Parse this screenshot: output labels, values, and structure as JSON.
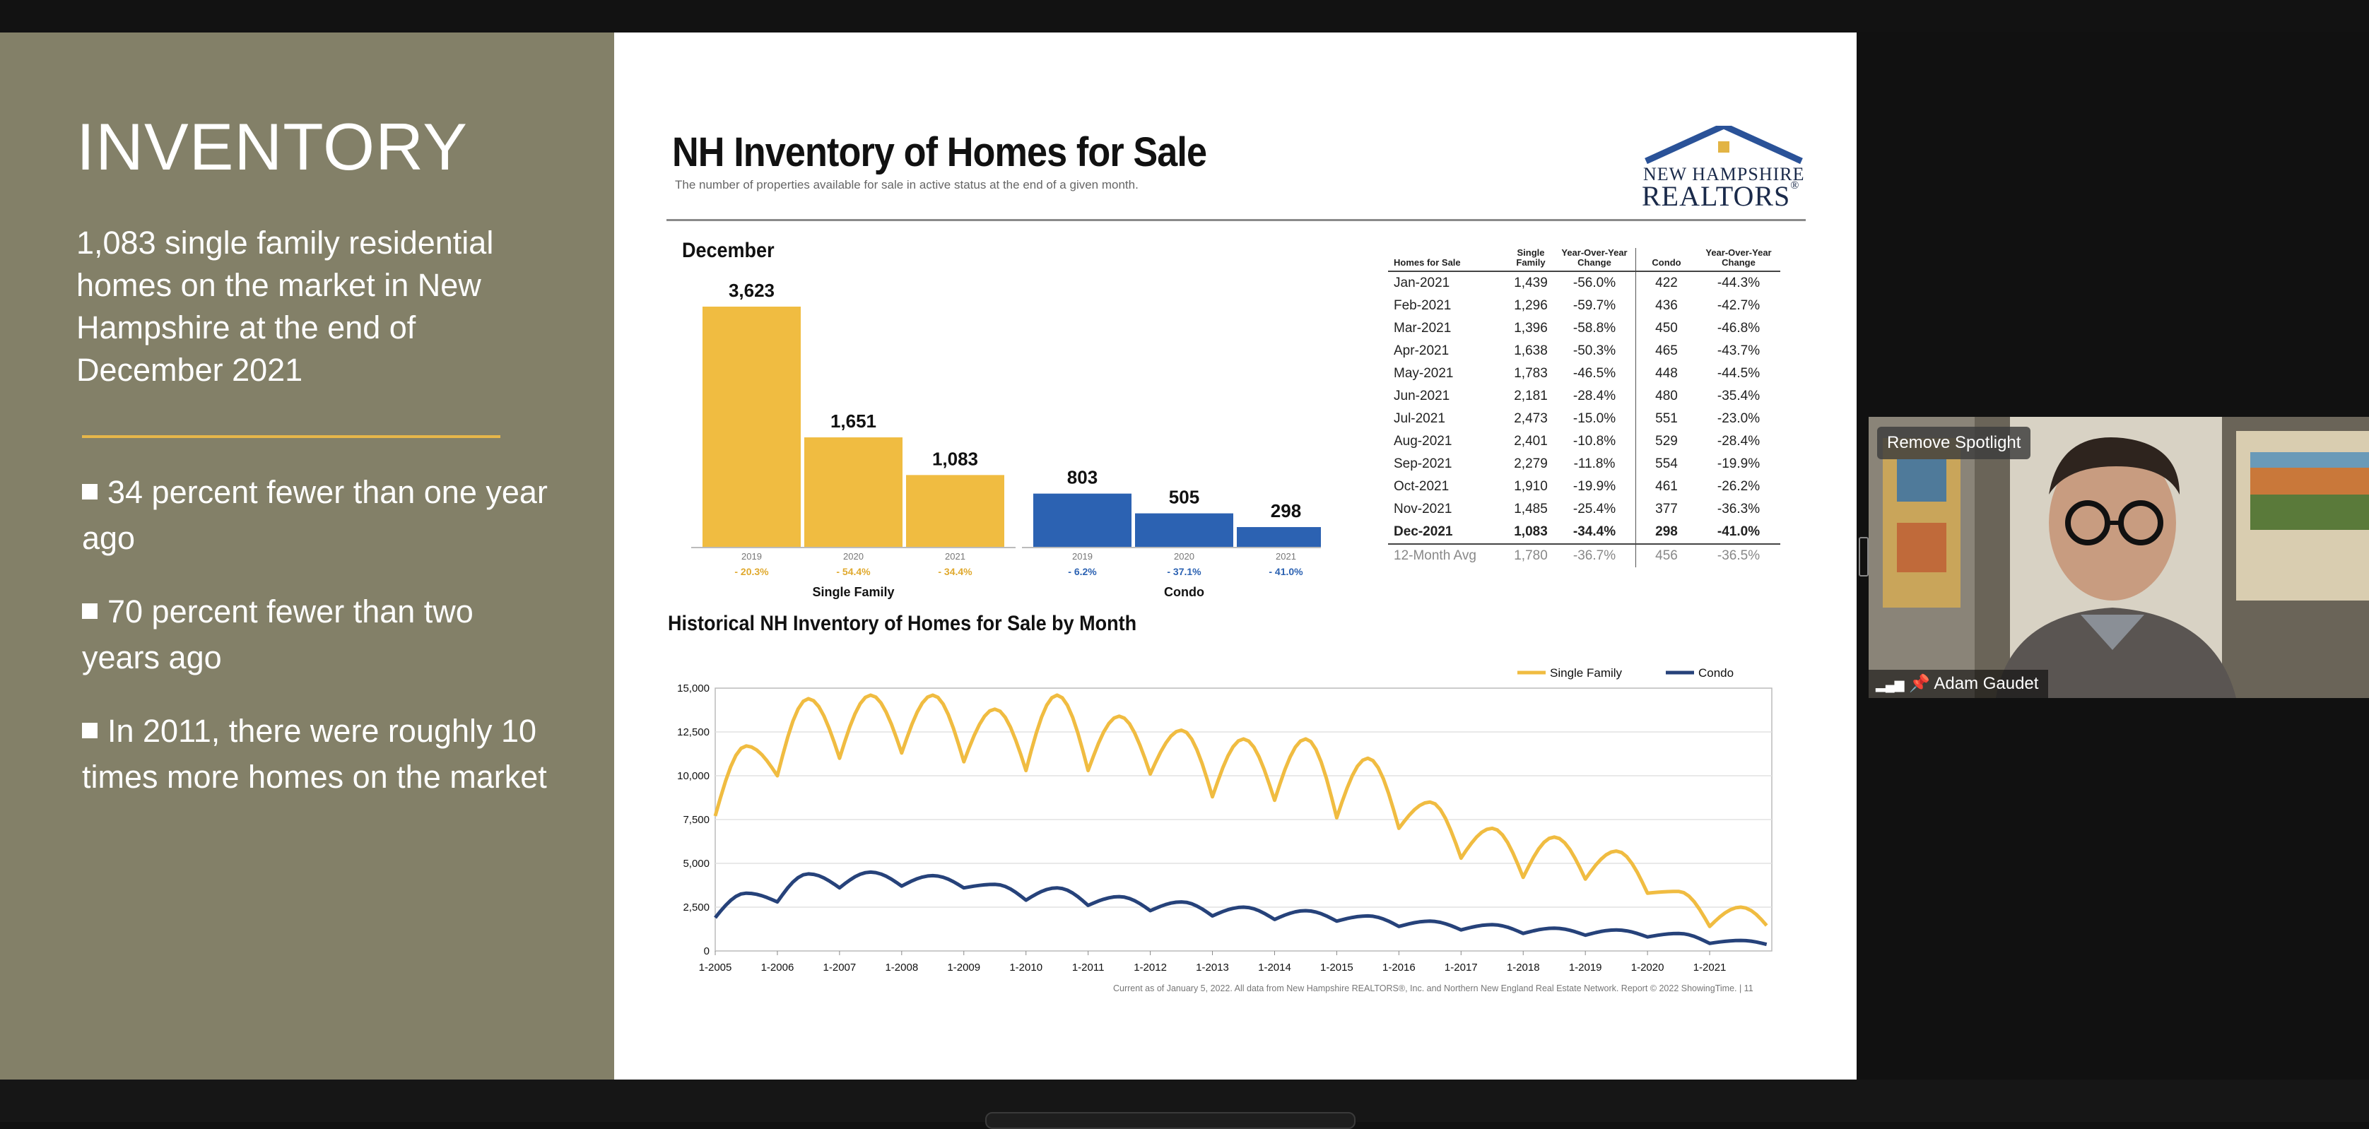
{
  "left_panel": {
    "title": "INVENTORY",
    "summary": "1,083 single family residential homes on the market in New Hampshire at the end of December 2021",
    "bullets": [
      "34 percent fewer than one year ago",
      "70 percent fewer than two years ago",
      "In 2011, there were roughly 10 times more homes on the market"
    ]
  },
  "slide": {
    "title": "NH Inventory of Homes for Sale",
    "subtitle": "The number of properties available for sale in active status at the end of a given month.",
    "logo": {
      "line1": "NEW HAMPSHIRE",
      "line2": "REALTORS",
      "mark": "®"
    },
    "december_label": "December",
    "historical_label": "Historical NH Inventory of Homes for Sale by Month",
    "footer": "Current as of January 5, 2022.  All data from New Hampshire REALTORS®, Inc. and Northern New England Real Estate Network. Report © 2022 ShowingTime.  |  11",
    "table": {
      "headers": [
        "Homes for Sale",
        "Single Family",
        "Year-Over-Year Change",
        "Condo",
        "Year-Over-Year Change"
      ],
      "rows": [
        [
          "Jan-2021",
          "1,439",
          "-56.0%",
          "422",
          "-44.3%"
        ],
        [
          "Feb-2021",
          "1,296",
          "-59.7%",
          "436",
          "-42.7%"
        ],
        [
          "Mar-2021",
          "1,396",
          "-58.8%",
          "450",
          "-46.8%"
        ],
        [
          "Apr-2021",
          "1,638",
          "-50.3%",
          "465",
          "-43.7%"
        ],
        [
          "May-2021",
          "1,783",
          "-46.5%",
          "448",
          "-44.5%"
        ],
        [
          "Jun-2021",
          "2,181",
          "-28.4%",
          "480",
          "-35.4%"
        ],
        [
          "Jul-2021",
          "2,473",
          "-15.0%",
          "551",
          "-23.0%"
        ],
        [
          "Aug-2021",
          "2,401",
          "-10.8%",
          "529",
          "-28.4%"
        ],
        [
          "Sep-2021",
          "2,279",
          "-11.8%",
          "554",
          "-19.9%"
        ],
        [
          "Oct-2021",
          "1,910",
          "-19.9%",
          "461",
          "-26.2%"
        ],
        [
          "Nov-2021",
          "1,485",
          "-25.4%",
          "377",
          "-36.3%"
        ],
        [
          "Dec-2021",
          "1,083",
          "-34.4%",
          "298",
          "-41.0%"
        ],
        [
          "12-Month Avg",
          "1,780",
          "-36.7%",
          "456",
          "-36.5%"
        ]
      ]
    }
  },
  "chart_data": [
    {
      "type": "bar",
      "title": "December",
      "groups": [
        {
          "name": "Single Family",
          "color": "#f0bc41",
          "categories": [
            "2019",
            "2020",
            "2021"
          ],
          "values": [
            3623,
            1651,
            1083
          ],
          "labels": [
            "3,623",
            "1,651",
            "1,083"
          ],
          "changes": [
            "- 20.3%",
            "- 54.4%",
            "- 34.4%"
          ]
        },
        {
          "name": "Condo",
          "color": "#2c62b2",
          "categories": [
            "2019",
            "2020",
            "2021"
          ],
          "values": [
            803,
            505,
            298
          ],
          "labels": [
            "803",
            "505",
            "298"
          ],
          "changes": [
            "- 6.2%",
            "- 37.1%",
            "- 41.0%"
          ]
        }
      ]
    },
    {
      "type": "line",
      "title": "Historical NH Inventory of Homes for Sale by Month",
      "ylim": [
        0,
        15000
      ],
      "yticks": [
        "0",
        "2,500",
        "5,000",
        "7,500",
        "10,000",
        "12,500",
        "15,000"
      ],
      "xticks": [
        "1-2005",
        "1-2006",
        "1-2007",
        "1-2008",
        "1-2009",
        "1-2010",
        "1-2011",
        "1-2012",
        "1-2013",
        "1-2014",
        "1-2015",
        "1-2016",
        "1-2017",
        "1-2018",
        "1-2019",
        "1-2020",
        "1-2021"
      ],
      "grid": true,
      "legend_position": "top-right",
      "series": [
        {
          "name": "Single Family",
          "color": "#f0bc41",
          "yearly_jan": [
            7700,
            10000,
            11000,
            11300,
            10800,
            10300,
            10300,
            10100,
            8800,
            8600,
            7600,
            7000,
            5300,
            4200,
            4100,
            3300,
            1400
          ],
          "yearly_peak": [
            11700,
            14400,
            14600,
            14600,
            13800,
            14600,
            13400,
            12600,
            12100,
            12100,
            11000,
            8500,
            7000,
            6500,
            5700,
            3400,
            2500
          ],
          "dec_2021": 1083
        },
        {
          "name": "Condo",
          "color": "#26427a",
          "yearly_jan": [
            1900,
            2800,
            3600,
            3700,
            3600,
            2900,
            2600,
            2300,
            2000,
            1800,
            1700,
            1400,
            1200,
            1000,
            900,
            800,
            430
          ],
          "yearly_peak": [
            3300,
            4400,
            4500,
            4300,
            3800,
            3600,
            3100,
            2800,
            2500,
            2300,
            2000,
            1700,
            1500,
            1300,
            1200,
            1000,
            600
          ],
          "dec_2021": 298
        }
      ]
    }
  ],
  "video": {
    "spotlight_label": "Remove Spotlight",
    "participant": "Adam Gaudet"
  }
}
